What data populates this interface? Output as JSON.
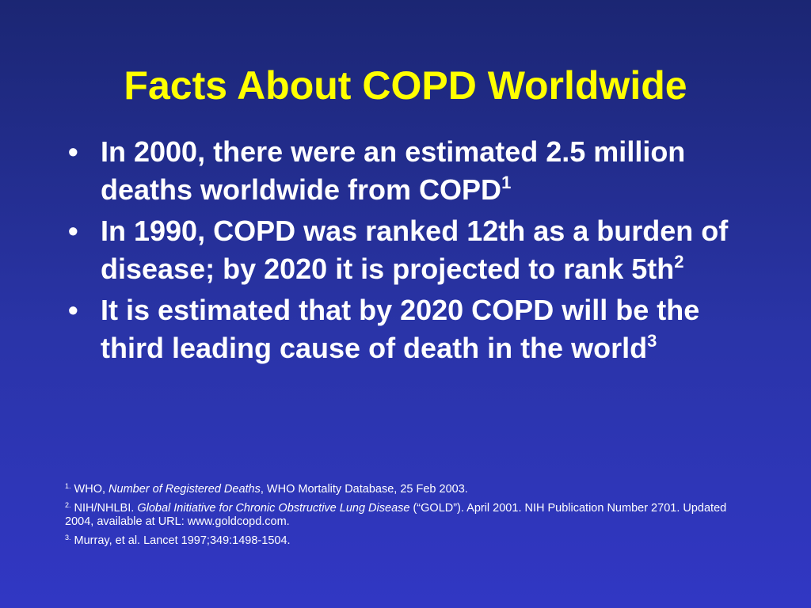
{
  "title": "Facts About COPD Worldwide",
  "bullets": [
    {
      "text": "In 2000, there were an estimated 2.5 million deaths worldwide from COPD",
      "sup": "1"
    },
    {
      "text": "In 1990, COPD was ranked 12th as a burden of disease; by 2020 it is projected to rank 5th",
      "sup": "2"
    },
    {
      "text": "It is estimated that by 2020 COPD will be the third leading cause of death in the world",
      "sup": "3"
    }
  ],
  "references": [
    {
      "num": "1.",
      "pre": " WHO, ",
      "italic": "Number of Registered Deaths",
      "post": ", WHO Mortality Database, 25 Feb 2003."
    },
    {
      "num": "2.",
      "pre": " NIH/NHLBI. ",
      "italic": "Global Initiative for Chronic Obstructive Lung Disease",
      "post": " (“GOLD”). April 2001. NIH Publication Number 2701.  Updated 2004, available at URL:  www.goldcopd.com."
    },
    {
      "num": "3.",
      "pre": "  Murray, et al.  Lancet 1997;349:1498-1504.",
      "italic": "",
      "post": ""
    }
  ]
}
